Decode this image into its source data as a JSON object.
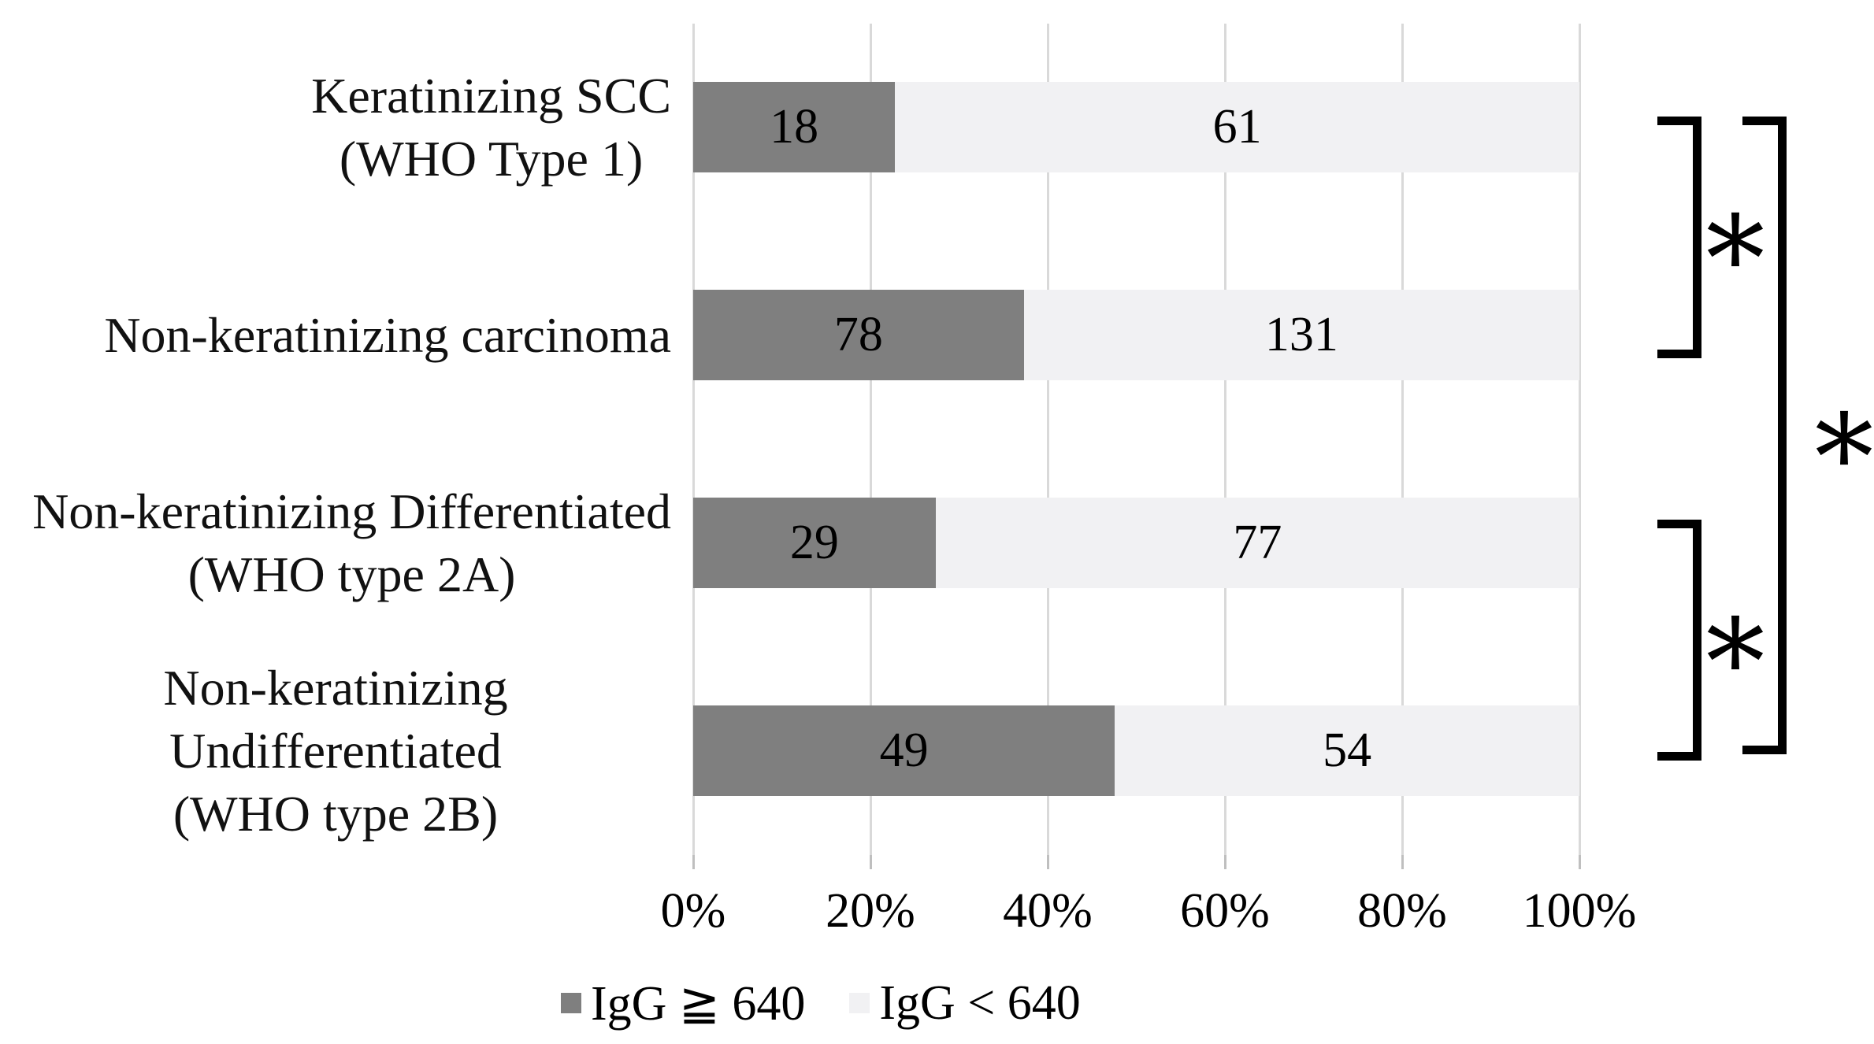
{
  "chart_data": {
    "type": "bar",
    "orientation": "horizontal",
    "stacked": true,
    "stacked_mode": "percent",
    "categories": [
      "Keratinizing SCC\n(WHO Type 1)",
      "Non-keratinizing carcinoma",
      "Non-keratinizing Differentiated\n(WHO type 2A)",
      "Non-keratinizing Undifferentiated\n(WHO type 2B)"
    ],
    "series": [
      {
        "name": "IgG ≧ 640",
        "color": "#7f7f7f",
        "values": [
          18,
          78,
          29,
          49
        ]
      },
      {
        "name": "IgG < 640",
        "color": "#f1f1f3",
        "values": [
          61,
          131,
          77,
          54
        ]
      }
    ],
    "segment_percentages": [
      [
        22.8,
        77.2
      ],
      [
        37.3,
        62.7
      ],
      [
        27.4,
        72.6
      ],
      [
        47.6,
        52.4
      ]
    ],
    "x_ticks": [
      "0%",
      "20%",
      "40%",
      "60%",
      "80%",
      "100%"
    ],
    "xlim": [
      0,
      100
    ],
    "xlabel": "",
    "ylabel": "",
    "title": "",
    "grid": true,
    "gridline_color": "#d9d9d9",
    "legend_position": "bottom",
    "value_label_color": "#000000",
    "annotations": {
      "significance_markers": [
        {
          "between": [
            "Keratinizing SCC (WHO Type 1)",
            "Non-keratinizing carcinoma"
          ],
          "symbol": "∗"
        },
        {
          "between": [
            "Non-keratinizing Differentiated (WHO type 2A)",
            "Non-keratinizing Undifferentiated (WHO type 2B)"
          ],
          "symbol": "∗"
        },
        {
          "between": [
            "Keratinizing SCC (WHO Type 1)",
            "Non-keratinizing Undifferentiated (WHO type 2B)"
          ],
          "symbol": "∗"
        }
      ]
    }
  }
}
